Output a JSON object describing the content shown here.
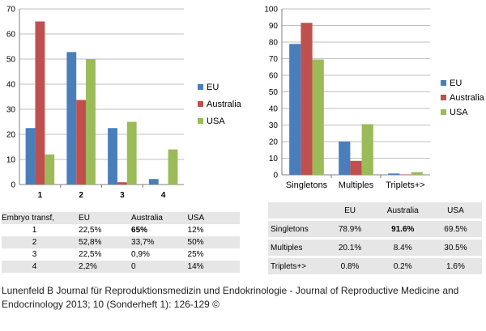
{
  "chart_data": [
    {
      "type": "bar",
      "categories": [
        "1",
        "2",
        "3",
        "4"
      ],
      "series": [
        {
          "name": "EU",
          "color": "#4a7ebb",
          "values": [
            22.5,
            52.8,
            22.5,
            2.2
          ]
        },
        {
          "name": "Australia",
          "color": "#c0504d",
          "values": [
            65,
            33.7,
            0.9,
            0
          ]
        },
        {
          "name": "USA",
          "color": "#9bbb59",
          "values": [
            12,
            50,
            25,
            14
          ]
        }
      ],
      "ylim": [
        0,
        70
      ],
      "yticks": [
        "0",
        "10",
        "20",
        "30",
        "40",
        "50",
        "60",
        "70"
      ],
      "grid": true,
      "legend": "right"
    },
    {
      "type": "bar",
      "categories": [
        "Singletons",
        "Multiples",
        "Triplets+>"
      ],
      "series": [
        {
          "name": "EU",
          "color": "#4a7ebb",
          "values": [
            78.9,
            20.1,
            0.8
          ]
        },
        {
          "name": "Australia",
          "color": "#c0504d",
          "values": [
            91.6,
            8.4,
            0.2
          ]
        },
        {
          "name": "USA",
          "color": "#9bbb59",
          "values": [
            69.5,
            30.5,
            1.6
          ]
        }
      ],
      "ylim": [
        0,
        100
      ],
      "yticks": [
        "0",
        "10",
        "20",
        "30",
        "40",
        "50",
        "60",
        "70",
        "80",
        "90",
        "100"
      ],
      "grid": true,
      "legend": "right"
    }
  ],
  "table_left": {
    "headers": [
      "Embryo transf,",
      "EU",
      "Australia",
      "USA"
    ],
    "rows": [
      [
        "1",
        "22,5%",
        "65%",
        "12%"
      ],
      [
        "2",
        "52,8%",
        "33,7%",
        "50%"
      ],
      [
        "3",
        "22,5%",
        "0,9%",
        "25%"
      ],
      [
        "4",
        "2,2%",
        "0",
        "14%"
      ]
    ]
  },
  "table_right": {
    "headers": [
      "",
      "EU",
      "Australia",
      "USA"
    ],
    "rows": [
      [
        "Singletons",
        "78.9%",
        "91.6%",
        "69.5%"
      ],
      [
        "Multiples",
        "20.1%",
        "8.4%",
        "30.5%"
      ],
      [
        "Triplets+>",
        "0.8%",
        "0.2%",
        "1.6%"
      ]
    ]
  },
  "caption": "Lunenfeld B Journal für Reproduktionsmedizin und Endokrinologie - Journal of Reproductive Medicine and Endocrinology 2013; 10 (Sonderheft 1): 126-129 ©"
}
